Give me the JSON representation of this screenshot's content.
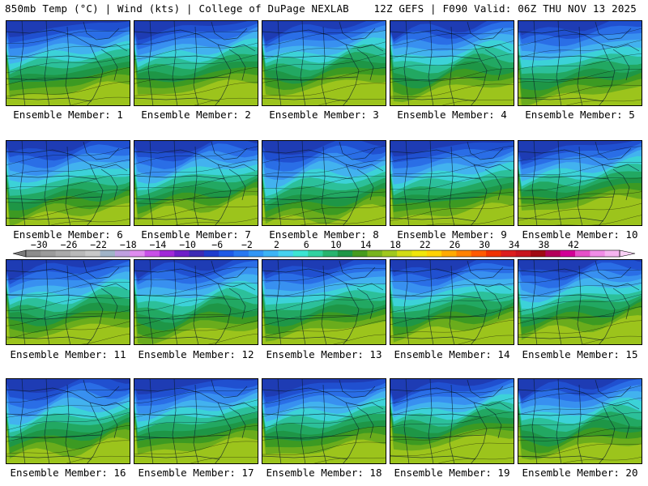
{
  "header": {
    "left": "850mb Temp (°C) | Wind (kts) | College of DuPage NEXLAB",
    "right": "12Z GEFS | F090 Valid: 06Z THU NOV 13 2025"
  },
  "panels": [
    {
      "label": "Ensemble Member: 1",
      "cold": 0.62
    },
    {
      "label": "Ensemble Member: 2",
      "cold": 0.55
    },
    {
      "label": "Ensemble Member: 3",
      "cold": 0.5
    },
    {
      "label": "Ensemble Member: 4",
      "cold": 0.58
    },
    {
      "label": "Ensemble Member: 5",
      "cold": 0.72
    },
    {
      "label": "Ensemble Member: 6",
      "cold": 0.7
    },
    {
      "label": "Ensemble Member: 7",
      "cold": 0.55
    },
    {
      "label": "Ensemble Member: 8",
      "cold": 0.78
    },
    {
      "label": "Ensemble Member: 9",
      "cold": 0.66
    },
    {
      "label": "Ensemble Member: 10",
      "cold": 0.45
    },
    {
      "label": "Ensemble Member: 11",
      "cold": 0.64
    },
    {
      "label": "Ensemble Member: 12",
      "cold": 0.7
    },
    {
      "label": "Ensemble Member: 13",
      "cold": 0.62
    },
    {
      "label": "Ensemble Member: 14",
      "cold": 0.6
    },
    {
      "label": "Ensemble Member: 15",
      "cold": 0.57
    },
    {
      "label": "Ensemble Member: 16",
      "cold": 0.66
    },
    {
      "label": "Ensemble Member: 17",
      "cold": 0.58
    },
    {
      "label": "Ensemble Member: 18",
      "cold": 0.62
    },
    {
      "label": "Ensemble Member: 19",
      "cold": 0.45
    },
    {
      "label": "Ensemble Member: 20",
      "cold": 0.6
    }
  ],
  "colorbar": {
    "labels": [
      "-30",
      "-26",
      "-22",
      "-18",
      "-14",
      "-10",
      "-6",
      "-2",
      "2",
      "6",
      "10",
      "14",
      "18",
      "22",
      "26",
      "30",
      "34",
      "38",
      "42"
    ],
    "colors": [
      "#8c8c8c",
      "#9b9b9b",
      "#aaaaaa",
      "#b9b9b9",
      "#c8c8c8",
      "#a0b4c8",
      "#bfa0e0",
      "#e08cf0",
      "#c850e8",
      "#a028d8",
      "#6e1ec8",
      "#3c2ab4",
      "#1e3ccd",
      "#1e5ae6",
      "#2878f0",
      "#3296f5",
      "#3cb4f5",
      "#46d2f0",
      "#3ce6d2",
      "#32d2a0",
      "#28b46e",
      "#1e9646",
      "#469b1e",
      "#78b41e",
      "#a0c81e",
      "#d2dc14",
      "#f0e60a",
      "#ffd200",
      "#ffaa00",
      "#ff8200",
      "#ff5a00",
      "#f03200",
      "#dc1e1e",
      "#c8141e",
      "#a00a14",
      "#b4005a",
      "#d20096",
      "#e650c8",
      "#f08ce6",
      "#f5b4f0"
    ]
  }
}
